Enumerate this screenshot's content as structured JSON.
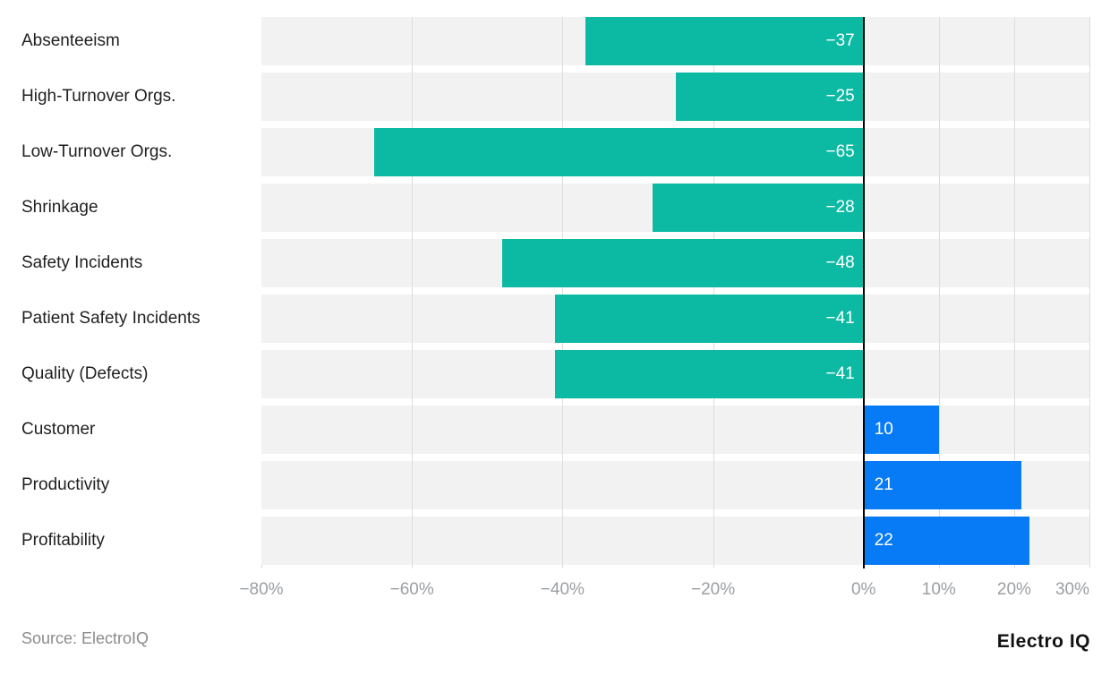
{
  "chart_data": {
    "type": "bar",
    "orientation": "horizontal",
    "title": "",
    "categories": [
      "Absenteeism",
      "High-Turnover Orgs.",
      "Low-Turnover Orgs.",
      "Shrinkage",
      "Safety Incidents",
      "Patient Safety Incidents",
      "Quality (Defects)",
      "Customer",
      "Productivity",
      "Profitability"
    ],
    "values": [
      -37,
      -25,
      -65,
      -28,
      -48,
      -41,
      -41,
      10,
      21,
      22
    ],
    "bar_labels": [
      "−37",
      "−25",
      "−65",
      "−28",
      "−48",
      "−41",
      "−41",
      "10",
      "21",
      "22"
    ],
    "unit": "%",
    "xlabel": "",
    "ylabel": "",
    "xlim": [
      -80,
      30
    ],
    "xticks": [
      -80,
      -60,
      -40,
      -20,
      0,
      10,
      20,
      30
    ],
    "xtick_labels": [
      "−80%",
      "−60%",
      "−40%",
      "−20%",
      "0%",
      "10%",
      "20%",
      "30%"
    ],
    "legend": "none",
    "grid": "vertical",
    "colors": {
      "negative_bar": "#0cb9a3",
      "positive_bar": "#077bf6",
      "row_band": "#f2f2f2",
      "gridline": "#dcdcdc",
      "zero_line": "#000000",
      "axis_text": "#9b9fa3",
      "category_text": "#1f1f1f",
      "bar_label_text": "#ffffff"
    }
  },
  "footer": {
    "source": "Source: ElectroIQ",
    "brand": "Electro IQ"
  }
}
